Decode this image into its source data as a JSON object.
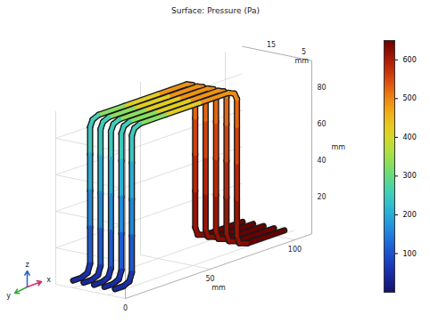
{
  "chart_data": {
    "type": "tube_surface_3d",
    "title": "Surface: Pressure (Pa)",
    "x_label": "mm",
    "y_label": "mm",
    "z_label": "mm",
    "xlim": [
      0,
      110
    ],
    "xticks": [
      0,
      50,
      100
    ],
    "ylim": [
      0,
      20
    ],
    "yticks": [
      5,
      15
    ],
    "zlim": [
      0,
      95
    ],
    "zticks": [
      20,
      40,
      60,
      80
    ],
    "grid": true,
    "triad": [
      "y",
      "z",
      "x"
    ],
    "tube_y": [
      3,
      6,
      9,
      12,
      15
    ],
    "path": {
      "x": [
        100,
        78,
        73.5,
        72,
        72,
        72,
        72,
        72,
        70.5,
        67,
        50,
        30,
        15,
        11.5,
        10,
        10,
        10,
        10,
        10,
        8.5,
        5,
        0
      ],
      "z": [
        4,
        4,
        5.5,
        10,
        30,
        50,
        70,
        85,
        88.5,
        90,
        90,
        90,
        90,
        88.5,
        85,
        70,
        50,
        30,
        10,
        5.5,
        4,
        4
      ],
      "pressure": [
        650,
        625,
        620,
        612,
        585,
        555,
        525,
        500,
        495,
        488,
        420,
        330,
        260,
        252,
        245,
        205,
        160,
        110,
        60,
        50,
        40,
        5
      ]
    },
    "colorbar": {
      "range": [
        0,
        650
      ],
      "ticks": [
        100,
        200,
        300,
        400,
        500,
        600
      ]
    }
  }
}
